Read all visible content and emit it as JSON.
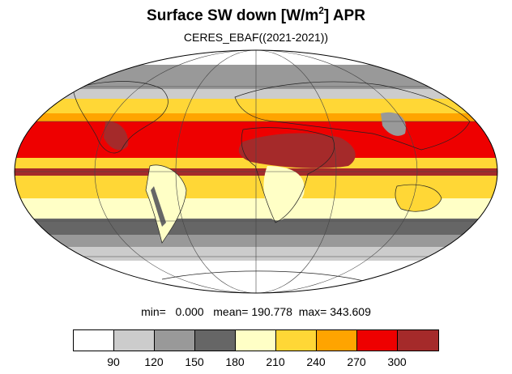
{
  "title": "Surface SW down [W/m",
  "title_sup": "2",
  "title_end": "]  APR",
  "subtitle": "CERES_EBAF((2021-2021))",
  "stats": {
    "min_label": "min=",
    "min": "0.000",
    "mean_label": "mean=",
    "mean": "190.778",
    "max_label": "max=",
    "max": "343.609"
  },
  "colorbar": {
    "colors": [
      "#ffffff",
      "#cccccc",
      "#999999",
      "#666666",
      "#ffffc6",
      "#ffd736",
      "#ffa400",
      "#ee0000",
      "#a52a2a"
    ],
    "tick_labels": [
      "90",
      "120",
      "150",
      "180",
      "210",
      "240",
      "270",
      "300"
    ]
  },
  "map": {
    "projection": "Mollweide",
    "grid": true,
    "bands": [
      {
        "name": "polar-north-cap",
        "color": "#ffffff"
      },
      {
        "name": "north-high-latitude",
        "color": "#999999"
      },
      {
        "name": "north-mid-latitude",
        "color": "#ffd736"
      },
      {
        "name": "north-subtropics",
        "color": "#ee0000"
      },
      {
        "name": "itcz",
        "color": "#a52a2a"
      },
      {
        "name": "tropics",
        "color": "#ffd736"
      },
      {
        "name": "southern-mid-latitude",
        "color": "#ffffc6"
      },
      {
        "name": "southern-ocean",
        "color": "#666666"
      },
      {
        "name": "antarctic-fringe",
        "color": "#cccccc"
      },
      {
        "name": "antarctica",
        "color": "#ffffff"
      }
    ]
  }
}
